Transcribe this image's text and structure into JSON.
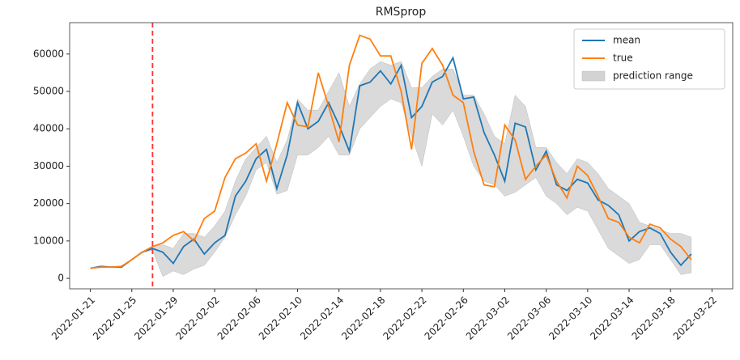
{
  "chart_data": {
    "type": "line",
    "title": "RMSprop",
    "x": [
      "2022-01-21",
      "2022-01-22",
      "2022-01-23",
      "2022-01-24",
      "2022-01-25",
      "2022-01-26",
      "2022-01-27",
      "2022-01-28",
      "2022-01-29",
      "2022-01-30",
      "2022-01-31",
      "2022-02-01",
      "2022-02-02",
      "2022-02-03",
      "2022-02-04",
      "2022-02-05",
      "2022-02-06",
      "2022-02-07",
      "2022-02-08",
      "2022-02-09",
      "2022-02-10",
      "2022-02-11",
      "2022-02-12",
      "2022-02-13",
      "2022-02-14",
      "2022-02-15",
      "2022-02-16",
      "2022-02-17",
      "2022-02-18",
      "2022-02-19",
      "2022-02-20",
      "2022-02-21",
      "2022-02-22",
      "2022-02-23",
      "2022-02-24",
      "2022-02-25",
      "2022-02-26",
      "2022-02-27",
      "2022-02-28",
      "2022-03-01",
      "2022-03-02",
      "2022-03-03",
      "2022-03-04",
      "2022-03-05",
      "2022-03-06",
      "2022-03-07",
      "2022-03-08",
      "2022-03-09",
      "2022-03-10",
      "2022-03-11",
      "2022-03-12",
      "2022-03-13",
      "2022-03-14",
      "2022-03-15",
      "2022-03-16",
      "2022-03-17",
      "2022-03-18",
      "2022-03-19",
      "2022-03-20"
    ],
    "series": [
      {
        "name": "mean",
        "color": "#1f77b4",
        "values": [
          2700,
          3200,
          3000,
          3000,
          5000,
          7000,
          8000,
          7000,
          4000,
          8500,
          10500,
          6500,
          9500,
          11500,
          22000,
          26000,
          32000,
          34500,
          24000,
          33000,
          47000,
          40000,
          42000,
          47000,
          41000,
          34000,
          51500,
          52500,
          55500,
          52000,
          57000,
          43000,
          46000,
          52500,
          54000,
          59000,
          48000,
          48500,
          39000,
          33000,
          26000,
          41500,
          40500,
          29000,
          34000,
          25000,
          23500,
          26500,
          25500,
          21000,
          19500,
          17000,
          10000,
          12500,
          13500,
          12000,
          7000,
          3500,
          6500
        ]
      },
      {
        "name": "true",
        "color": "#ff7f0e",
        "values": [
          2700,
          3000,
          3000,
          3200,
          5000,
          7000,
          8500,
          9500,
          11500,
          12500,
          10000,
          16000,
          18000,
          27000,
          32000,
          33500,
          36000,
          26000,
          36000,
          47000,
          41000,
          40500,
          55000,
          46000,
          36500,
          57000,
          65000,
          64000,
          59500,
          59500,
          50000,
          34500,
          57500,
          61500,
          57000,
          49000,
          47000,
          34000,
          25000,
          24500,
          41000,
          37000,
          26500,
          30000,
          33000,
          26000,
          21500,
          30000,
          27500,
          22000,
          16000,
          15000,
          11000,
          9500,
          14500,
          13500,
          10500,
          8500,
          5000
        ]
      }
    ],
    "band": {
      "name": "prediction range",
      "color": "#d3d3d3",
      "lower": [
        2700,
        3200,
        3000,
        3000,
        5000,
        7000,
        7500,
        500,
        2000,
        1000,
        2500,
        3500,
        7000,
        11000,
        17000,
        22000,
        29000,
        31000,
        22500,
        23500,
        33000,
        33000,
        35000,
        38000,
        33000,
        33000,
        40000,
        43000,
        46000,
        48000,
        47000,
        38000,
        30000,
        44000,
        41000,
        45000,
        38000,
        30000,
        26000,
        25000,
        22000,
        23000,
        25000,
        27000,
        22000,
        20000,
        17000,
        19000,
        18000,
        13000,
        8000,
        6000,
        4000,
        5000,
        9000,
        9000,
        5000,
        1000,
        1500
      ],
      "upper": [
        2700,
        3200,
        3000,
        3000,
        5000,
        7000,
        8500,
        9000,
        8000,
        12000,
        12000,
        11000,
        14000,
        18000,
        26000,
        32000,
        35000,
        38000,
        31000,
        37000,
        48000,
        45000,
        45000,
        50000,
        55000,
        46000,
        52000,
        56000,
        58000,
        57000,
        58000,
        51000,
        51000,
        54000,
        56000,
        56000,
        49000,
        49000,
        44000,
        38000,
        36000,
        49000,
        46000,
        35000,
        35000,
        31000,
        28000,
        32000,
        31000,
        28000,
        24000,
        22000,
        20000,
        15000,
        14000,
        13000,
        12000,
        12000,
        11000
      ]
    },
    "vline": {
      "x": "2022-01-27",
      "color": "#ff3333"
    },
    "xlim": [
      "2022-01-19",
      "2022-03-24"
    ],
    "xticks": [
      "2022-01-21",
      "2022-01-25",
      "2022-01-29",
      "2022-02-02",
      "2022-02-06",
      "2022-02-10",
      "2022-02-14",
      "2022-02-18",
      "2022-02-22",
      "2022-02-26",
      "2022-03-02",
      "2022-03-06",
      "2022-03-10",
      "2022-03-14",
      "2022-03-18",
      "2022-03-22"
    ],
    "ylim": [
      -2800,
      68400
    ],
    "yticks": [
      0,
      10000,
      20000,
      30000,
      40000,
      50000,
      60000
    ],
    "legend": "upper right",
    "grid": false
  }
}
